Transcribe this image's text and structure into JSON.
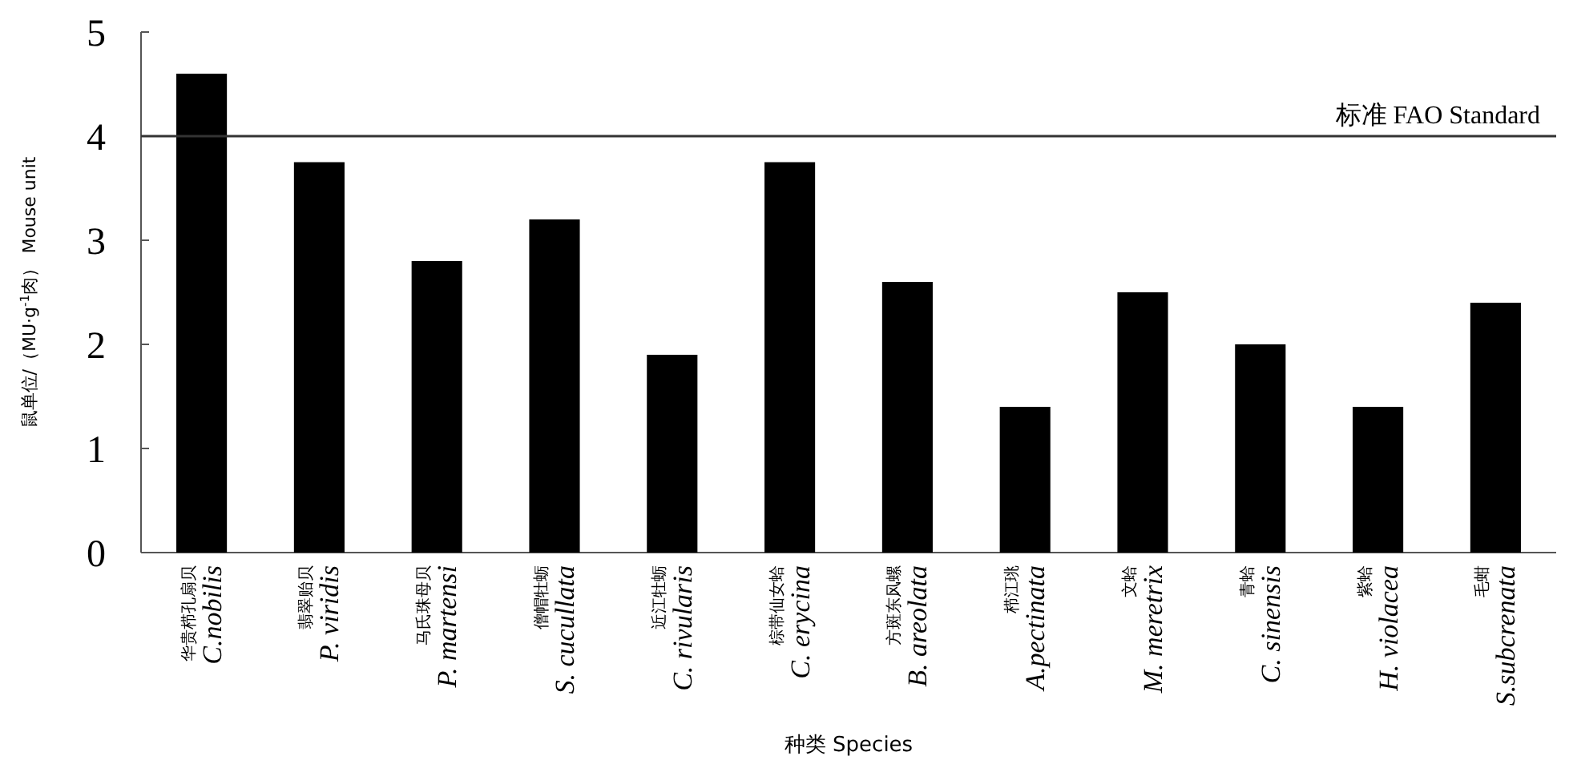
{
  "chart_data": {
    "type": "bar",
    "xlabel": "种类  Species",
    "ylabel": "鼠单位/（MU·g$^{-1}$肉） Mouse unit",
    "categories": [
      "华贵栉孔扇贝\nC.nobilis",
      "翡翠贻贝\nP. viridis",
      "马氏珠母贝\nP. martensi",
      "僧帽牡蛎\nS. cucullata",
      "近江牡蛎\nC. rivularis",
      "棕带仙女蛤\nC. erycina",
      "方斑东风螺\nB. areolata",
      "栉江珧\nA.pectinata",
      "文蛤\nM. meretrix",
      "青蛤\nC. sinensis",
      "紫蛤\nH. violacea",
      "毛蚶\nS.subcrenata"
    ],
    "values": [
      4.6,
      3.75,
      2.8,
      3.2,
      1.9,
      3.75,
      2.6,
      1.4,
      2.5,
      2.0,
      1.4,
      2.4
    ],
    "color": "#000000",
    "ylim": [
      0,
      5
    ],
    "yticks": [
      0,
      1,
      2,
      3,
      4,
      5
    ],
    "grid": false,
    "ref_lines": [
      {
        "axis": "y",
        "value": 4,
        "label": "标准 FAO Standard",
        "color": "#333333"
      }
    ]
  }
}
